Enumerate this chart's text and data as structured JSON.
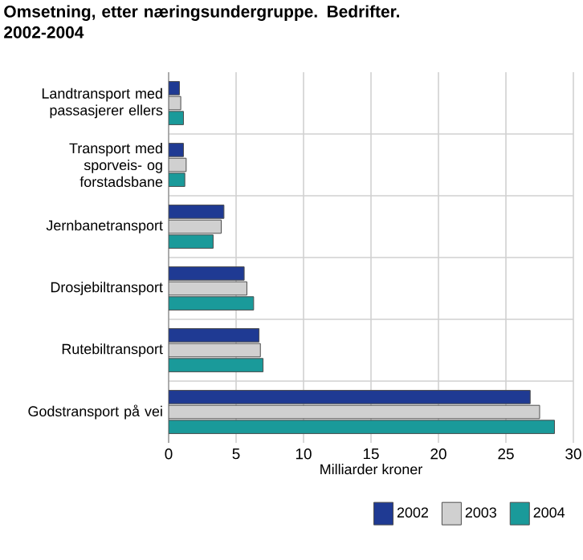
{
  "chart_data": {
    "type": "bar",
    "orientation": "horizontal",
    "title": "Omsetning, etter næringsundergruppe. Bedrifter. 2002-2004",
    "xlabel": "Milliarder kroner",
    "categories": [
      "Landtransport med passasjerer ellers",
      "Transport med sporveis- og forstadsbane",
      "Jernbanetransport",
      "Drosjebiltransport",
      "Rutebiltransport",
      "Godstransport på vei"
    ],
    "series": [
      {
        "name": "2002",
        "color": "#1f3a93",
        "values": [
          0.8,
          1.1,
          4.1,
          5.6,
          6.7,
          26.8
        ]
      },
      {
        "name": "2003",
        "color": "#d0d0d0",
        "values": [
          0.9,
          1.3,
          3.9,
          5.8,
          6.8,
          27.5
        ]
      },
      {
        "name": "2004",
        "color": "#1a9a9a",
        "values": [
          1.1,
          1.2,
          3.3,
          6.3,
          7.0,
          28.6
        ]
      }
    ],
    "xlim": [
      0,
      30
    ],
    "xticks": [
      0,
      5,
      10,
      15,
      20,
      25,
      30
    ],
    "grid": true,
    "legend": "bottom"
  }
}
